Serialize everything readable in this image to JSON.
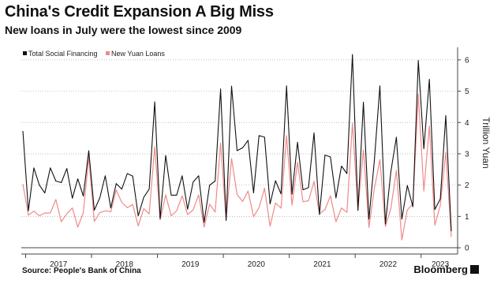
{
  "title": "China's Credit Expansion A Big Miss",
  "subtitle": "New loans in July were the lowest since 2009",
  "source": "Source: People's Bank of China",
  "brand": "Bloomberg",
  "chart_data": {
    "type": "line",
    "x_labels": [
      "2017",
      "2018",
      "2019",
      "2020",
      "2021",
      "2022",
      "2023"
    ],
    "x_start": "2016-12",
    "x_end": "2023-07",
    "ylabel": "Trillion Yuan",
    "ylim": [
      -0.2,
      6.4
    ],
    "y_ticks": [
      0,
      1,
      2,
      3,
      4,
      5,
      6
    ],
    "grid": true,
    "legend_position": "top-left",
    "series": [
      {
        "name": "Total Social Financing",
        "color": "#111111",
        "values": [
          3.73,
          1.18,
          2.55,
          2.0,
          1.75,
          2.55,
          2.13,
          2.08,
          2.53,
          1.58,
          2.2,
          1.65,
          3.1,
          1.2,
          1.59,
          2.3,
          1.27,
          2.05,
          1.87,
          2.37,
          2.29,
          1.02,
          1.61,
          1.87,
          4.66,
          0.93,
          2.95,
          1.68,
          1.68,
          2.3,
          1.23,
          2.1,
          2.3,
          0.81,
          2.0,
          2.13,
          5.07,
          0.87,
          5.16,
          3.1,
          3.19,
          3.43,
          1.75,
          3.58,
          3.53,
          1.4,
          2.14,
          1.72,
          5.17,
          1.71,
          3.37,
          1.85,
          1.92,
          3.67,
          1.06,
          2.96,
          2.9,
          1.59,
          2.61,
          2.37,
          6.17,
          1.19,
          4.65,
          0.91,
          2.79,
          5.17,
          0.76,
          2.43,
          3.53,
          0.91,
          1.99,
          1.31,
          5.98,
          3.16,
          5.38,
          1.22,
          1.56,
          4.22,
          0.53
        ],
        "label_values": []
      },
      {
        "name": "New Yuan Loans",
        "color": "#ef8a8a",
        "values": [
          2.03,
          1.04,
          1.17,
          1.02,
          1.11,
          1.11,
          1.54,
          0.83,
          1.09,
          1.27,
          0.66,
          1.12,
          2.9,
          0.84,
          1.12,
          1.18,
          1.15,
          1.84,
          1.45,
          1.28,
          1.38,
          0.7,
          1.25,
          1.08,
          3.23,
          0.89,
          1.69,
          1.02,
          1.18,
          1.66,
          1.06,
          1.21,
          1.69,
          0.66,
          1.39,
          1.14,
          3.34,
          0.91,
          2.85,
          1.7,
          1.48,
          1.81,
          0.99,
          1.28,
          1.9,
          0.69,
          1.43,
          1.26,
          3.58,
          1.36,
          2.73,
          1.47,
          1.5,
          2.12,
          1.08,
          1.22,
          1.66,
          0.83,
          1.27,
          1.13,
          3.98,
          1.23,
          3.13,
          0.65,
          1.89,
          2.81,
          0.68,
          1.25,
          2.47,
          0.25,
          1.21,
          1.4,
          4.9,
          1.81,
          3.89,
          0.72,
          1.36,
          3.05,
          0.35
        ],
        "label_values": []
      }
    ]
  }
}
